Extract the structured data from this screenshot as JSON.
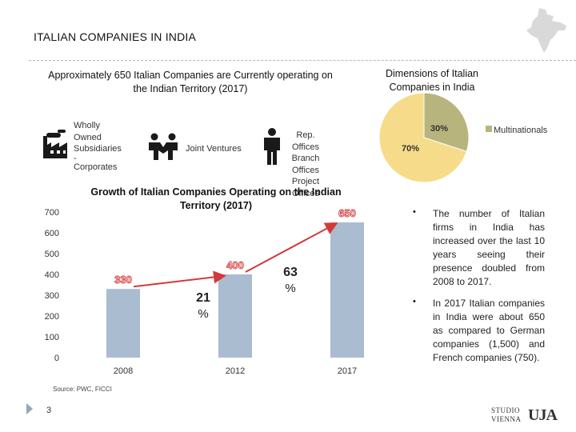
{
  "title": "ITALIAN COMPANIES IN INDIA",
  "approx_heading": "Approximately 650 Italian Companies are Currently operating on the Indian Territory (2017)",
  "dims_heading": "Dimensions of Italian Companies in India",
  "entry_modes": {
    "wholly_lines": [
      "Wholly",
      "Owned",
      "Subsidiaries",
      "-",
      "Corporates"
    ],
    "joint_ventures": "Joint Ventures",
    "rep_lines": [
      "Rep. Offices",
      "Branch",
      "Offices",
      "Project",
      "Offices"
    ]
  },
  "pie": {
    "slices": [
      {
        "label": "30%",
        "value": 30,
        "color": "#b8b47d"
      },
      {
        "label": "70%",
        "value": 70,
        "color": "#f6dc8a"
      }
    ],
    "legend": "Multinationals"
  },
  "chart_data": {
    "type": "bar",
    "title": "Growth of Italian Companies Operating on the Indian Territory (2017)",
    "categories": [
      "2008",
      "2012",
      "2017"
    ],
    "values": [
      330,
      400,
      650
    ],
    "value_labels": [
      "330",
      "400",
      "650"
    ],
    "yticks": [
      0,
      100,
      200,
      300,
      400,
      500,
      600,
      700
    ],
    "ylim": [
      0,
      700
    ],
    "growth_annotations": [
      {
        "value": "21",
        "unit": "%"
      },
      {
        "value": "63",
        "unit": "%"
      }
    ],
    "bar_color": "#a9bcd0",
    "arrow_color": "#d23a3a",
    "source": "Source: PWC, FICCI"
  },
  "bullets": [
    "The number of Italian firms in India has increased over the last 10 years seeing their presence doubled from 2008 to 2017.",
    "In 2017 Italian companies in India were about 650 as compared to German companies (1,500) and French companies (750)."
  ],
  "bullet_char": "•",
  "page_number": "3",
  "logo_studio": [
    "STUDIO",
    "VIENNA"
  ],
  "logo_uja": "UJA"
}
